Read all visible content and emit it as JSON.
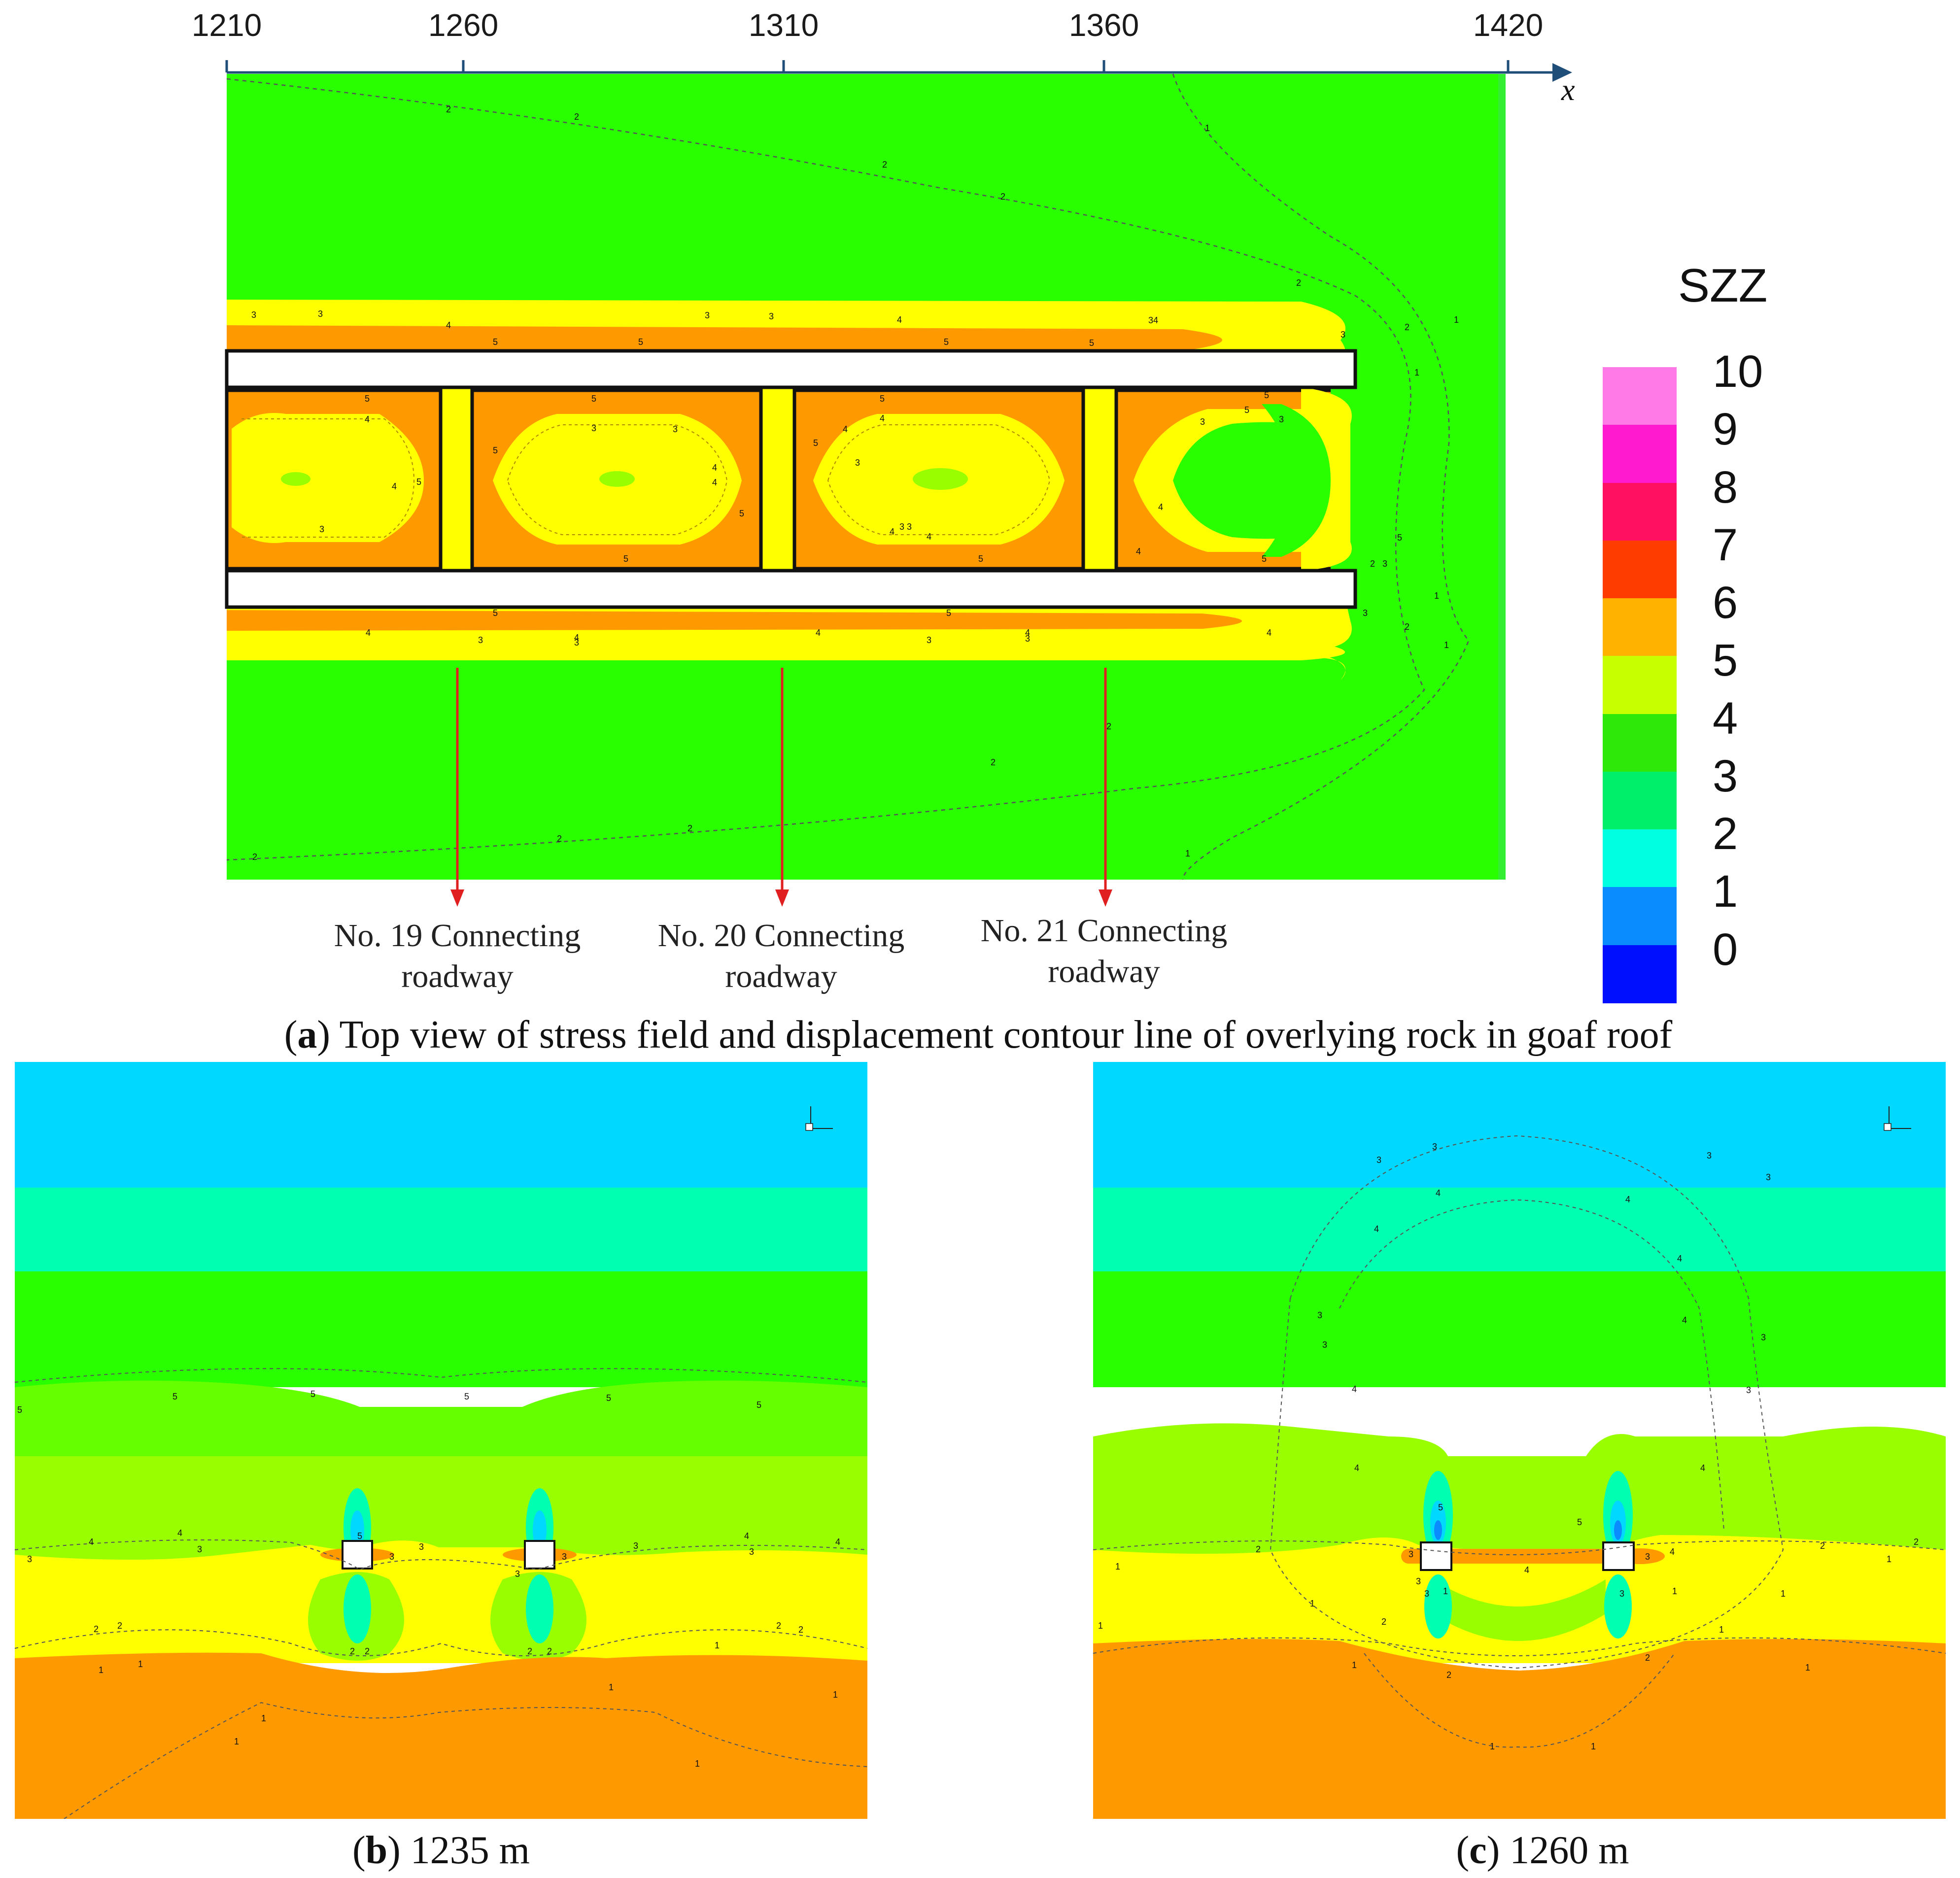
{
  "panel_a": {
    "axis": {
      "ticks": [
        "1210",
        "1260",
        "1310",
        "1360",
        "1420"
      ],
      "name": "x"
    },
    "roadway_labels": [
      {
        "line1": "No. 19 Connecting",
        "line2": "roadway"
      },
      {
        "line1": "No. 20 Connecting",
        "line2": "roadway"
      },
      {
        "line1": "No. 21 Connecting",
        "line2": "roadway"
      }
    ],
    "caption_letter": "a",
    "caption_text": ") Top view of stress field and displacement contour line of overlying rock in goaf roof"
  },
  "legend": {
    "title": "SZZ",
    "levels": [
      "10",
      "9",
      "8",
      "7",
      "6",
      "5",
      "4",
      "3",
      "2",
      "1",
      "0"
    ],
    "colors": [
      "#ff7ae6",
      "#ff1ad0",
      "#ff1060",
      "#ff3c00",
      "#ffb300",
      "#c8ff00",
      "#2ee80a",
      "#00ef6a",
      "#00ffe0",
      "#0a8cff",
      "#0010ff"
    ]
  },
  "panel_b": {
    "caption_letter": "b",
    "caption_text": ") 1235 m"
  },
  "panel_c": {
    "caption_letter": "c",
    "caption_text": ") 1260 m"
  },
  "colors": {
    "green": "#2aff00",
    "yellow": "#ffff00",
    "orange": "#ff9900",
    "lime": "#99ff00",
    "cyan": "#00d8ff",
    "aqua": "#00ffb0",
    "red_arrow": "#e02020",
    "axis_blue": "#1f4e79"
  }
}
